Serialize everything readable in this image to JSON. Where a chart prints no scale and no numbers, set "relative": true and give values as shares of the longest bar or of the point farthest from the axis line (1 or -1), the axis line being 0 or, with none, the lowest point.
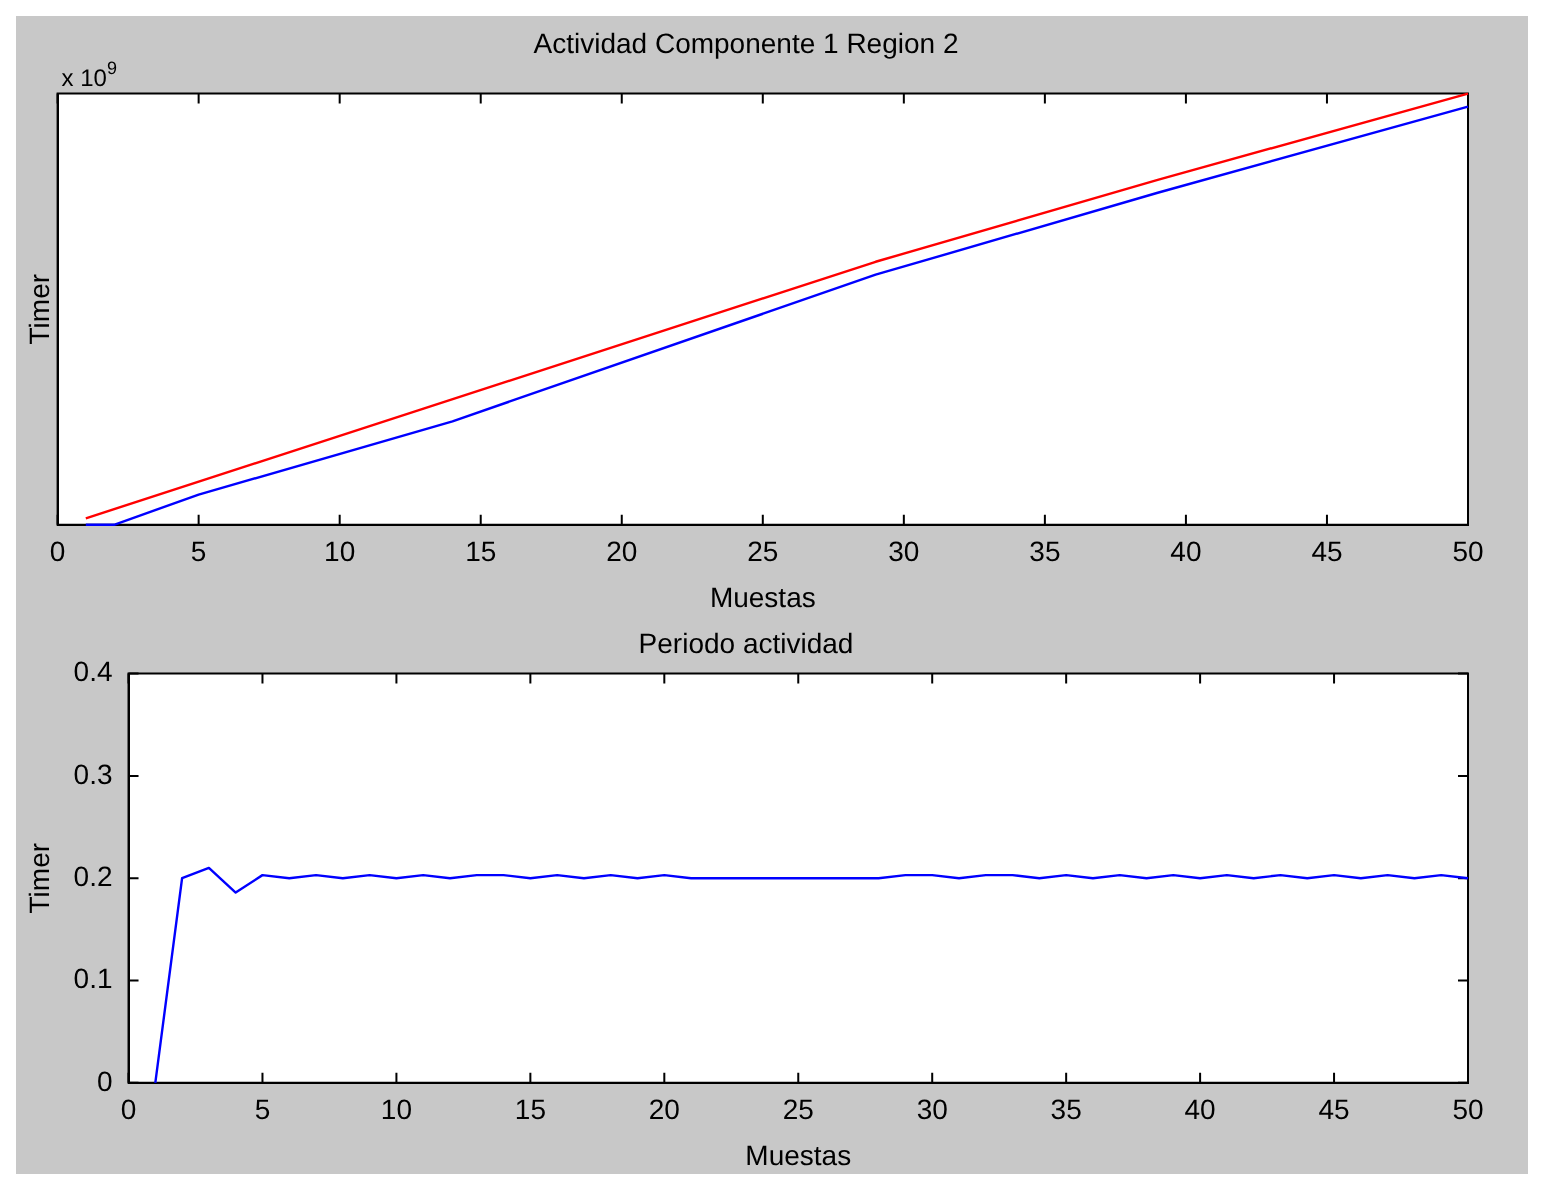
{
  "chart_data": [
    {
      "type": "line",
      "title": "Actividad Componente 1 Region 2",
      "xlabel": "Muestas",
      "ylabel": "Timer",
      "relative": true,
      "xlim": [
        0,
        50
      ],
      "xticks": [
        0,
        5,
        10,
        15,
        20,
        25,
        30,
        35,
        40,
        45,
        50
      ],
      "annotations": [
        "x 10$^{9}$"
      ],
      "series": [
        {
          "color": "#ff0000",
          "x": [
            1,
            13,
            29,
            39,
            50
          ],
          "values": [
            0.015,
            0.27,
            0.61,
            0.8,
            1
          ]
        },
        {
          "color": "#0000ff",
          "x": [
            1,
            2,
            5,
            14,
            29,
            39,
            50
          ],
          "values": [
            0,
            0,
            0.07,
            0.24,
            0.58,
            0.77,
            0.97
          ]
        }
      ]
    },
    {
      "type": "line",
      "title": "Periodo actividad",
      "xlabel": "Muestas",
      "ylabel": "Timer",
      "xlim": [
        0,
        50
      ],
      "xticks": [
        0,
        5,
        10,
        15,
        20,
        25,
        30,
        35,
        40,
        45,
        50
      ],
      "ylim": [
        0,
        0.4
      ],
      "yticks": [
        0,
        0.1,
        0.2,
        0.3,
        0.4
      ],
      "x": [
        1,
        2,
        3,
        4,
        5,
        6,
        7,
        8,
        9,
        10,
        11,
        12,
        13,
        14,
        15,
        16,
        17,
        18,
        19,
        20,
        21,
        22,
        23,
        24,
        25,
        26,
        27,
        28,
        29,
        30,
        31,
        32,
        33,
        34,
        35,
        36,
        37,
        38,
        39,
        40,
        41,
        42,
        43,
        44,
        45,
        46,
        47,
        48,
        49,
        50
      ],
      "series": [
        {
          "color": "#0000ff",
          "values": [
            0,
            0.2,
            0.21,
            0.186,
            0.203,
            0.2,
            0.203,
            0.2,
            0.203,
            0.2,
            0.203,
            0.2,
            0.203,
            0.203,
            0.2,
            0.203,
            0.2,
            0.203,
            0.2,
            0.203,
            0.2,
            0.2,
            0.2,
            0.2,
            0.2,
            0.2,
            0.2,
            0.2,
            0.203,
            0.203,
            0.2,
            0.203,
            0.203,
            0.2,
            0.203,
            0.2,
            0.203,
            0.2,
            0.203,
            0.2,
            0.203,
            0.2,
            0.203,
            0.2,
            0.203,
            0.2,
            0.203,
            0.2,
            0.203,
            0.2
          ]
        }
      ]
    }
  ]
}
